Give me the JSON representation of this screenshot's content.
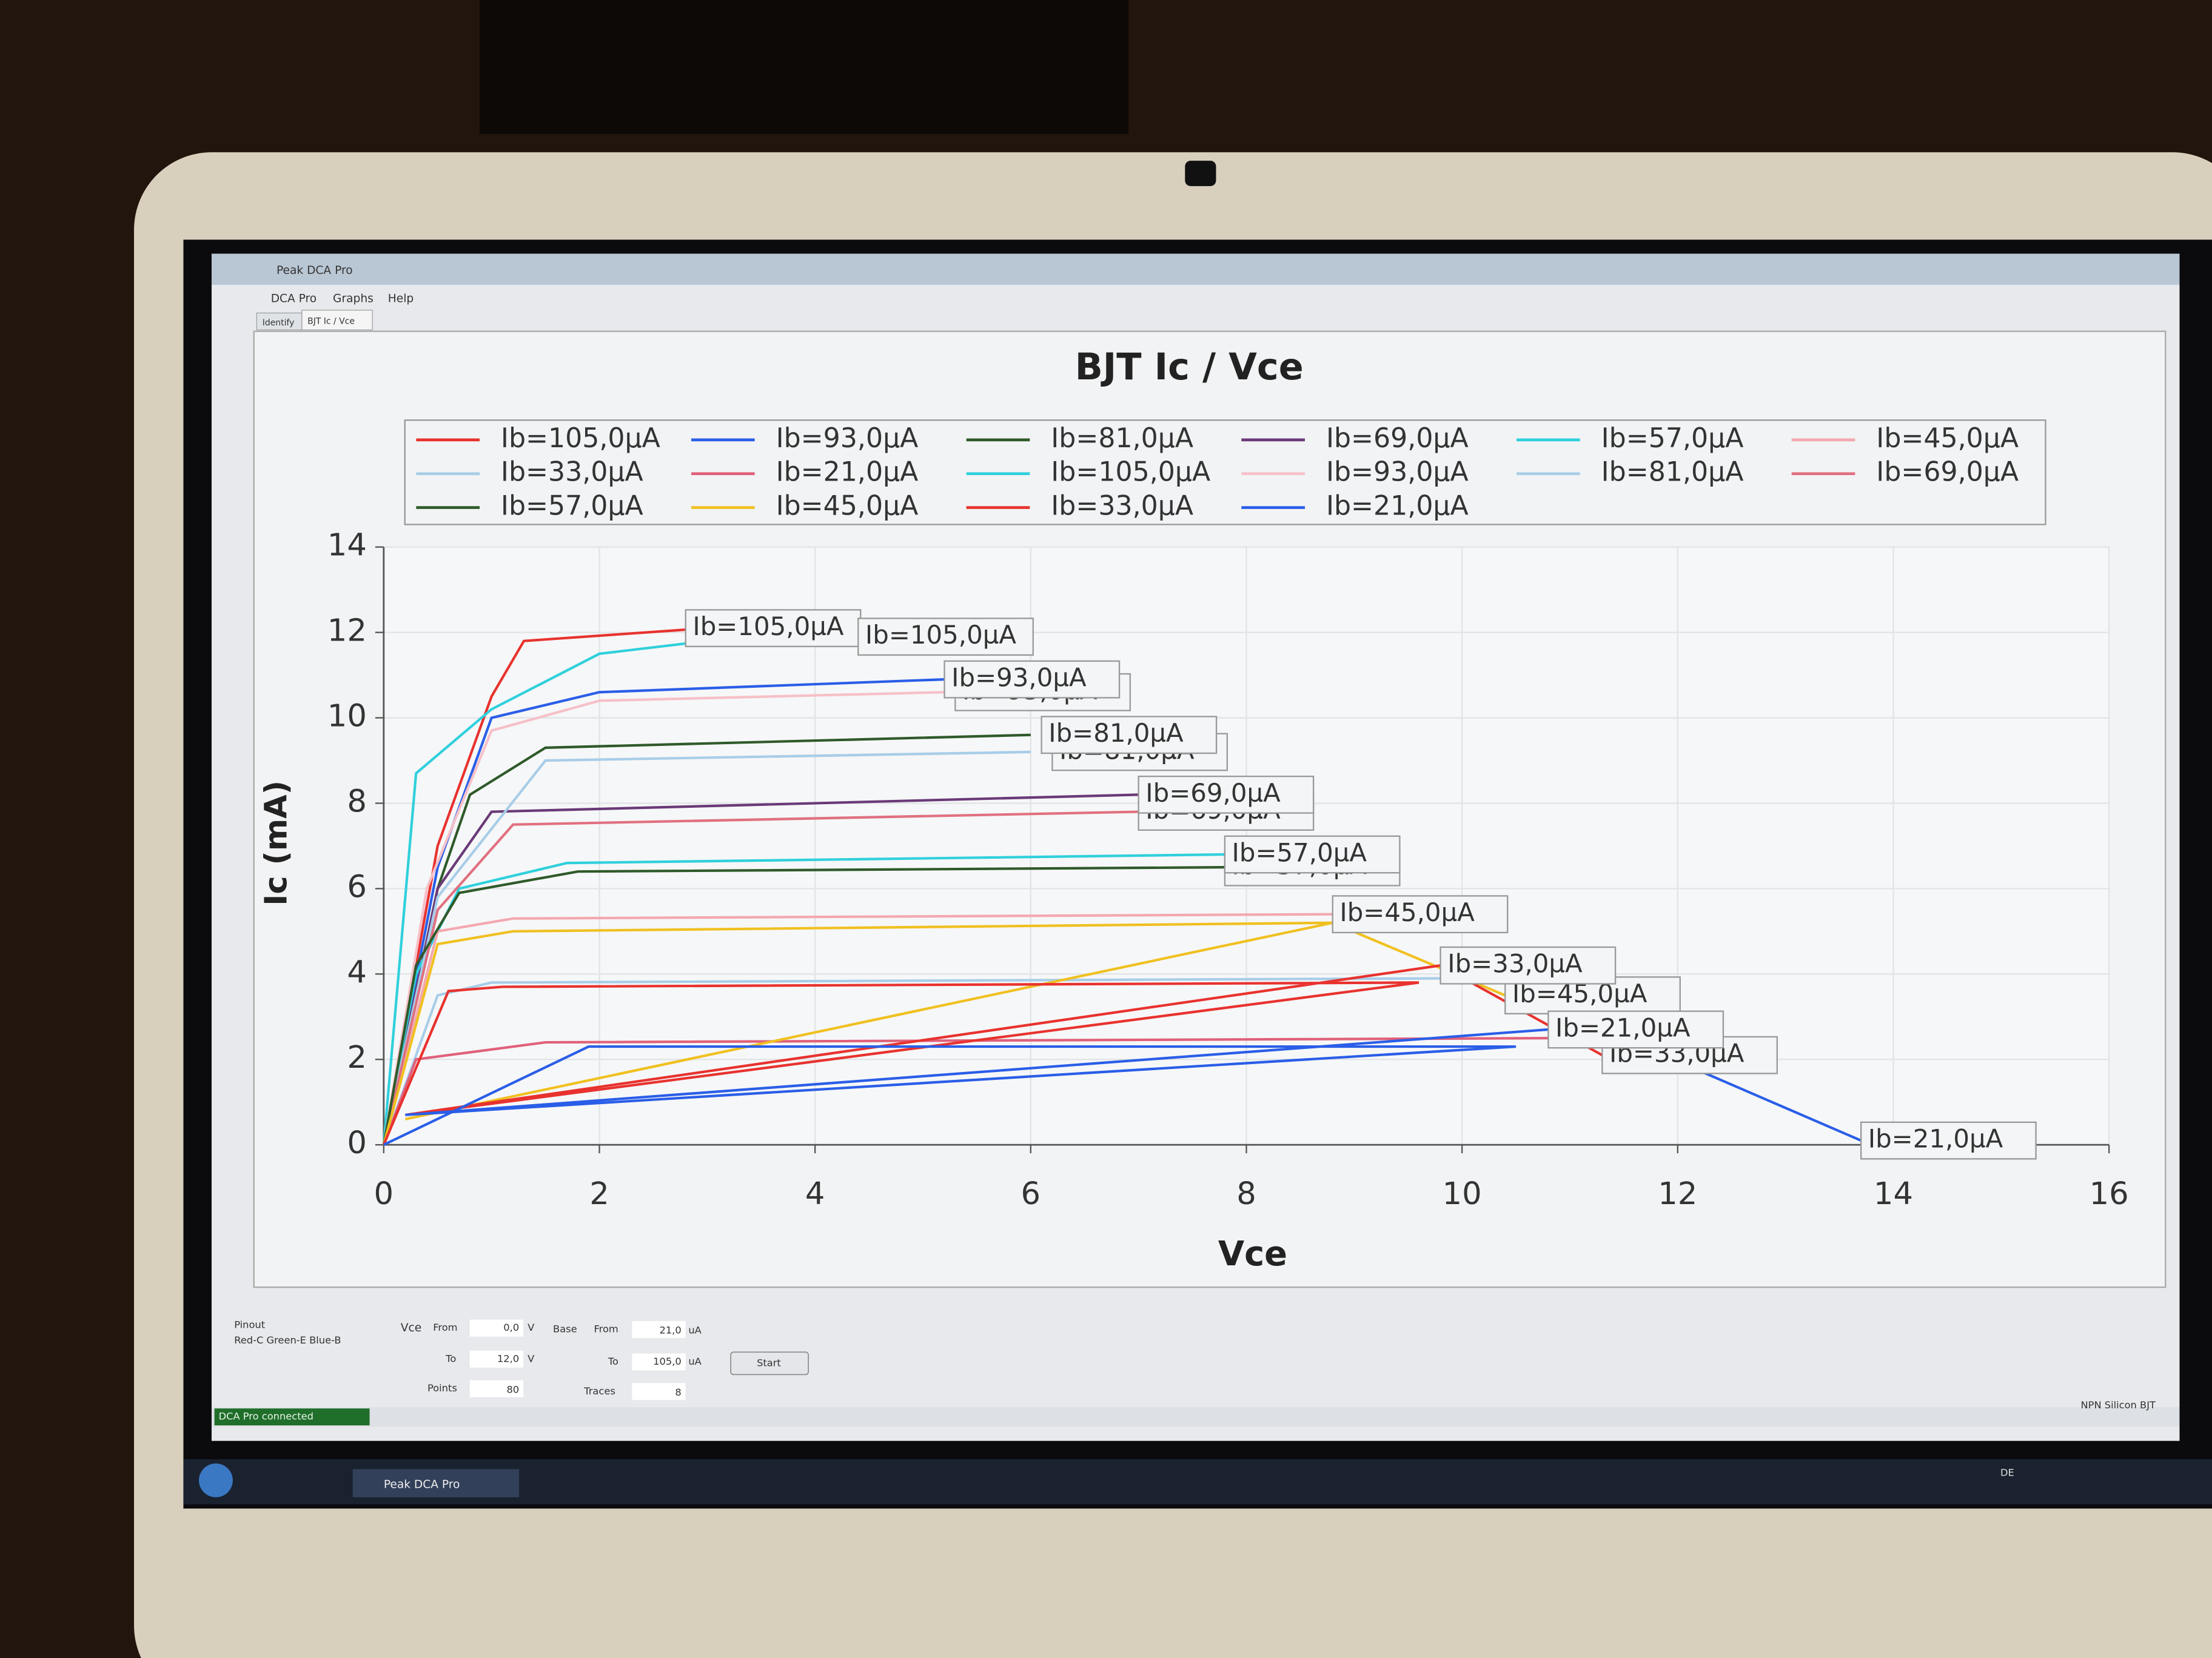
{
  "window": {
    "title": "Peak DCA Pro",
    "menu": [
      "DCA Pro",
      "Graphs",
      "Help"
    ],
    "tabs": [
      "Identify",
      "BJT Ic / Vce"
    ]
  },
  "controls": {
    "pinout_label": "Pinout",
    "pinout": "Red-C Green-E Blue-B",
    "vce_label": "Vce",
    "vce_from_label": "From",
    "vce_from": "0,0",
    "vce_from_unit": "V",
    "vce_to_label": "To",
    "vce_to": "12,0",
    "vce_to_unit": "V",
    "points_label": "Points",
    "points": "80",
    "base_label": "Base",
    "base_from_label": "From",
    "base_from": "21,0",
    "base_from_unit": "uA",
    "base_to_label": "To",
    "base_to": "105,0",
    "base_to_unit": "uA",
    "traces_label": "Traces",
    "traces": "8",
    "start_button": "Start"
  },
  "status": {
    "connection": "DCA Pro connected",
    "device": "NPN Silicon BJT"
  },
  "taskbar": {
    "app": "Peak DCA Pro",
    "language": "DE"
  },
  "chart_data": {
    "type": "line",
    "title": "BJT Ic / Vce",
    "x_label": "Vce",
    "y_label": "Ic (mA)",
    "xlim": [
      0,
      16
    ],
    "xticks": [
      0,
      2,
      4,
      6,
      8,
      10,
      12,
      14,
      16
    ],
    "ylim": [
      0,
      14
    ],
    "yticks": [
      0,
      2,
      4,
      6,
      8,
      10,
      12,
      14
    ],
    "grid": true,
    "series": [
      {
        "name": "Ib=105,0µA",
        "color": "#e8322e",
        "x": [
          0,
          0.5,
          1,
          1.3,
          3
        ],
        "values": [
          0,
          7,
          10.5,
          11.8,
          12.1
        ]
      },
      {
        "name": "Ib=93,0µA",
        "color": "#2a5ee8",
        "x": [
          0,
          0.5,
          1,
          2,
          5.2
        ],
        "values": [
          0,
          6.5,
          10,
          10.6,
          10.9
        ]
      },
      {
        "name": "Ib=81,0µA",
        "color": "#2f5a2a",
        "x": [
          0,
          0.5,
          0.8,
          1.5,
          6
        ],
        "values": [
          0,
          6,
          8.2,
          9.3,
          9.6
        ]
      },
      {
        "name": "Ib=69,0µA",
        "color": "#6a3a78",
        "x": [
          0,
          0.5,
          1,
          7
        ],
        "values": [
          0,
          6,
          7.8,
          8.2
        ]
      },
      {
        "name": "Ib=57,0µA",
        "color": "#2fd0dc",
        "x": [
          0,
          0.3,
          0.7,
          1.7,
          7.8
        ],
        "values": [
          0,
          4,
          6,
          6.6,
          6.8
        ]
      },
      {
        "name": "Ib=45,0µA",
        "color": "#f4a8b0",
        "x": [
          0,
          0.5,
          1.2,
          8.8
        ],
        "values": [
          0,
          5,
          5.3,
          5.4
        ]
      },
      {
        "name": "Ib=33,0µA",
        "color": "#a8cde8",
        "x": [
          0,
          0.5,
          1,
          10
        ],
        "values": [
          0,
          3.5,
          3.8,
          3.9
        ]
      },
      {
        "name": "Ib=21,0µA",
        "color": "#e0607a",
        "x": [
          0,
          0.3,
          1.5,
          11
        ],
        "values": [
          0,
          2,
          2.4,
          2.5
        ]
      },
      {
        "name": "Ib=105,0µA",
        "color": "#2fd0dc",
        "x": [
          0,
          0.3,
          1,
          2,
          3,
          4.3
        ],
        "values": [
          0,
          8.7,
          10.2,
          11.5,
          11.8,
          11.9
        ]
      },
      {
        "name": "Ib=93,0µA",
        "color": "#f6c0c8",
        "x": [
          0,
          0.4,
          1,
          2,
          5.2
        ],
        "values": [
          0,
          6,
          9.7,
          10.4,
          10.6
        ]
      },
      {
        "name": "Ib=81,0µA",
        "color": "#a8cde8",
        "x": [
          0,
          0.5,
          1.5,
          6
        ],
        "values": [
          0,
          5.8,
          9,
          9.2
        ]
      },
      {
        "name": "Ib=69,0µA",
        "color": "#e07080",
        "x": [
          0,
          0.5,
          1.2,
          7
        ],
        "values": [
          0,
          5.5,
          7.5,
          7.8
        ]
      },
      {
        "name": "Ib=57,0µA",
        "color": "#2f5a2a",
        "x": [
          0,
          0.3,
          0.7,
          1.8,
          7.8
        ],
        "values": [
          0,
          4.2,
          5.9,
          6.4,
          6.5
        ]
      },
      {
        "name": "Ib=45,0µA",
        "color": "#f0c020",
        "x": [
          0,
          0.5,
          1.2,
          8.8,
          0.2,
          8.8,
          10.4
        ],
        "values": [
          0,
          4.7,
          5,
          5.2,
          0.6,
          5.2,
          3.5
        ]
      },
      {
        "name": "Ib=33,0µA",
        "color": "#e8322e",
        "x": [
          0,
          0.6,
          1.1,
          9.6,
          0.2,
          9.8,
          11.3
        ],
        "values": [
          0,
          3.6,
          3.7,
          3.8,
          0.7,
          4.2,
          2.1
        ]
      },
      {
        "name": "Ib=21,0µA",
        "color": "#2a5ee8",
        "x": [
          0,
          1.9,
          10.5,
          0.2,
          10.8,
          11.5,
          13.7
        ],
        "values": [
          0,
          2.3,
          2.3,
          0.7,
          2.7,
          2.5,
          0.1
        ]
      }
    ],
    "annotations": [
      {
        "text": "Ib=105,0µA",
        "x": 2.8,
        "y": 12.1
      },
      {
        "text": "Ib=105,0µA",
        "x": 4.4,
        "y": 11.9
      },
      {
        "text": "Ib=93,0µA",
        "x": 5.3,
        "y": 10.6
      },
      {
        "text": "Ib=93,0µA",
        "x": 5.2,
        "y": 10.9
      },
      {
        "text": "Ib=81,0µA",
        "x": 6.2,
        "y": 9.2
      },
      {
        "text": "Ib=81,0µA",
        "x": 6.1,
        "y": 9.6
      },
      {
        "text": "Ib=69,0µA",
        "x": 7.0,
        "y": 7.8
      },
      {
        "text": "Ib=69,0µA",
        "x": 7.0,
        "y": 8.2
      },
      {
        "text": "Ib=57,0µA",
        "x": 7.8,
        "y": 6.5
      },
      {
        "text": "Ib=57,0µA",
        "x": 7.8,
        "y": 6.8
      },
      {
        "text": "Ib=45,0µA",
        "x": 8.8,
        "y": 5.4
      },
      {
        "text": "Ib=45,0µA",
        "x": 10.4,
        "y": 3.5
      },
      {
        "text": "Ib=33,0µA",
        "x": 9.8,
        "y": 4.2
      },
      {
        "text": "Ib=33,0µA",
        "x": 11.3,
        "y": 2.1
      },
      {
        "text": "Ib=21,0µA",
        "x": 10.8,
        "y": 2.7
      },
      {
        "text": "Ib=21,0µA",
        "x": 13.7,
        "y": 0.1
      }
    ]
  }
}
